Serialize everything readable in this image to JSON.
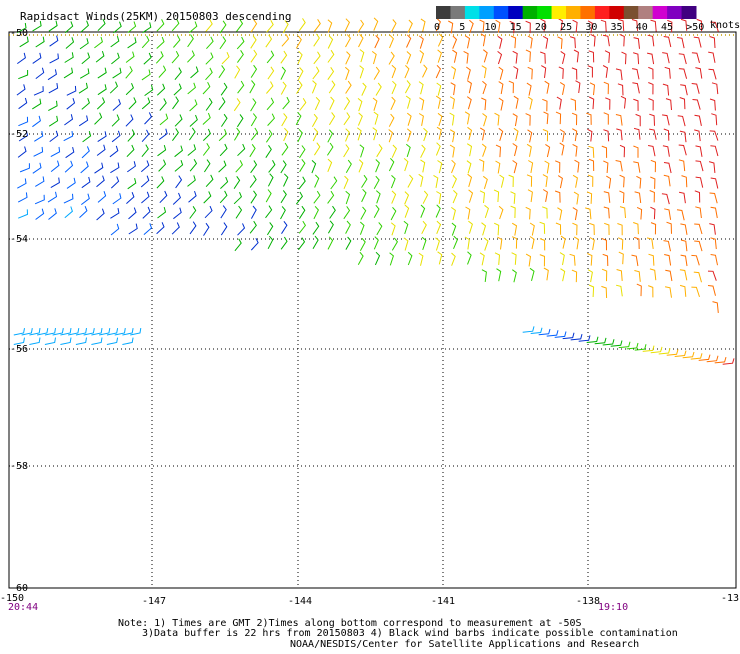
{
  "title": "Rapidsact Winds(25KM) 20150803 descending",
  "colorbar": {
    "labels": [
      "0",
      "5",
      "10",
      "15",
      "20",
      "25",
      "30",
      "35",
      "40",
      "45",
      ">50"
    ],
    "units": "knots",
    "colors": [
      "#3c3c3c",
      "#7a7a7a",
      "#00e0e8",
      "#00a0ff",
      "#0050ff",
      "#0000c0",
      "#00b000",
      "#00e000",
      "#ffee00",
      "#ffb000",
      "#ff7000",
      "#ff2020",
      "#d00000",
      "#7a5030",
      "#b08080",
      "#d000d0",
      "#8000c0",
      "#400080"
    ]
  },
  "latitudes": [
    "-50",
    "-52",
    "-54",
    "-56",
    "-58",
    "-60"
  ],
  "longitudes": [
    "-150",
    "-147",
    "-144",
    "-141",
    "-138",
    "-13"
  ],
  "times": {
    "left": "20:44",
    "right": "19:10"
  },
  "notes": [
    "Note: 1) Times are GMT 2)Times along bottom correspond to measurement at -50S",
    "3)Data buffer is 22 hrs from 20150803 4) Black wind barbs indicate possible contamination",
    "NOAA/NESDIS/Center for Satellite Applications and Research"
  ],
  "map_data": {
    "region": {
      "lon": [
        -150,
        -135
      ],
      "lat": [
        -60,
        -50
      ]
    },
    "gridlines": "dotted",
    "regions": [
      {
        "name": "main-swath-south-edge",
        "lat_south": -54.5
      },
      {
        "name": "isolated-patch-west",
        "lon": [
          -150,
          -147.5
        ],
        "lat": [
          -55.6,
          -55.4
        ],
        "speed_knots": 8
      },
      {
        "name": "isolated-patch-east",
        "lon": [
          -139.5,
          -135
        ],
        "lat": [
          -56,
          -55.4
        ],
        "speed_knots": 15
      }
    ],
    "wind_speed_pattern": "lighter (blue/cyan) in southwest, increasing to 20-35 knots (yellow/orange/red) toward the northeast"
  }
}
